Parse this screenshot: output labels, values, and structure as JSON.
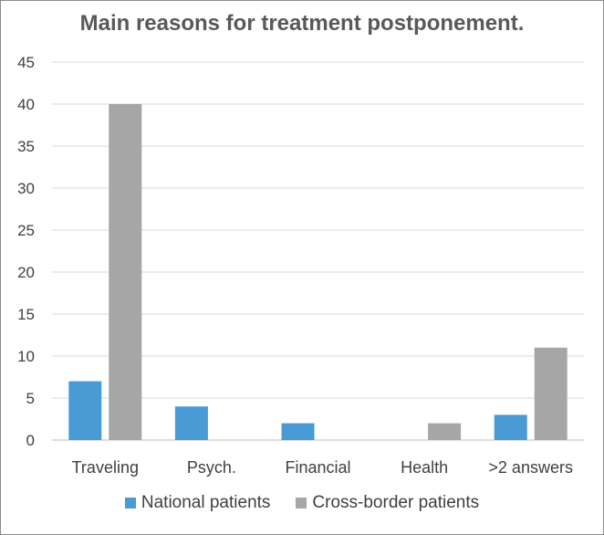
{
  "chart_data": {
    "type": "bar",
    "title": "Main reasons for treatment postponement.",
    "categories": [
      "Traveling",
      "Psych.",
      "Financial",
      "Health",
      ">2 answers"
    ],
    "series": [
      {
        "name": "National patients",
        "values": [
          7,
          4,
          2,
          0,
          3
        ],
        "color": "#4a9ad6"
      },
      {
        "name": "Cross-border patients",
        "values": [
          40,
          0,
          0,
          2,
          11
        ],
        "color": "#a6a6a6"
      }
    ],
    "ylim": [
      0,
      45
    ],
    "yticks": [
      0,
      5,
      10,
      15,
      20,
      25,
      30,
      35,
      40,
      45
    ],
    "grid": true,
    "legend_position": "bottom"
  }
}
